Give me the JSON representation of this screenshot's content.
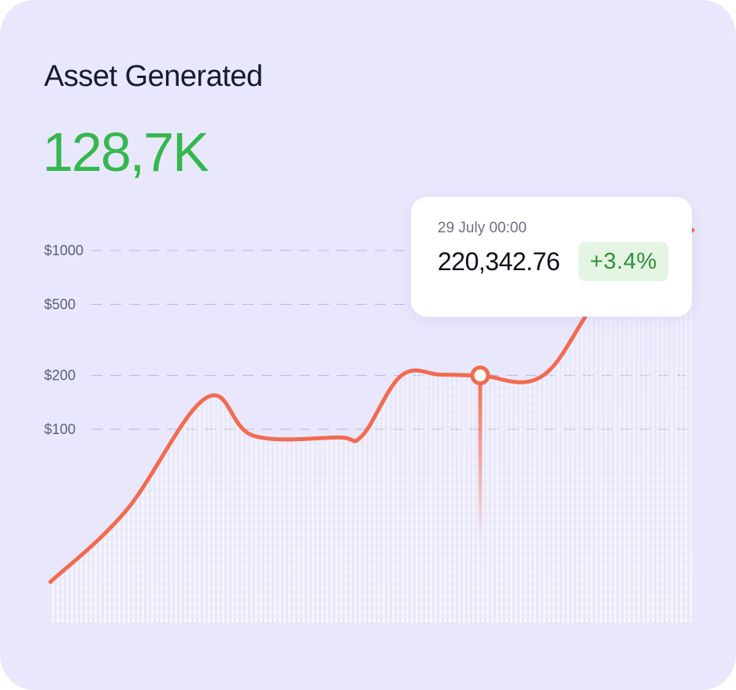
{
  "card": {
    "title": "Asset Generated",
    "total": "128,7K"
  },
  "colors": {
    "background": "#e9e7fb",
    "line": "#f26b50",
    "positive": "#33b84d",
    "badge_bg": "#e4f6e3",
    "grid": "#b9b6d8"
  },
  "chart_data": {
    "type": "line",
    "title": "",
    "xlabel": "",
    "ylabel": "",
    "y_scale": "log",
    "y_ticks": [
      {
        "value": 1000,
        "label": "$1000"
      },
      {
        "value": 500,
        "label": "$500"
      },
      {
        "value": 200,
        "label": "$200"
      },
      {
        "value": 100,
        "label": "$100"
      }
    ],
    "grid": true,
    "series": [
      {
        "values": [
          14,
          35,
          150,
          92,
          90,
          92,
          200,
          202,
          200,
          200,
          600,
          1300
        ]
      }
    ],
    "highlight_index": 8
  },
  "tooltip": {
    "date": "29 July 00:00",
    "value": "220,342.76",
    "change": "+3.4%"
  }
}
